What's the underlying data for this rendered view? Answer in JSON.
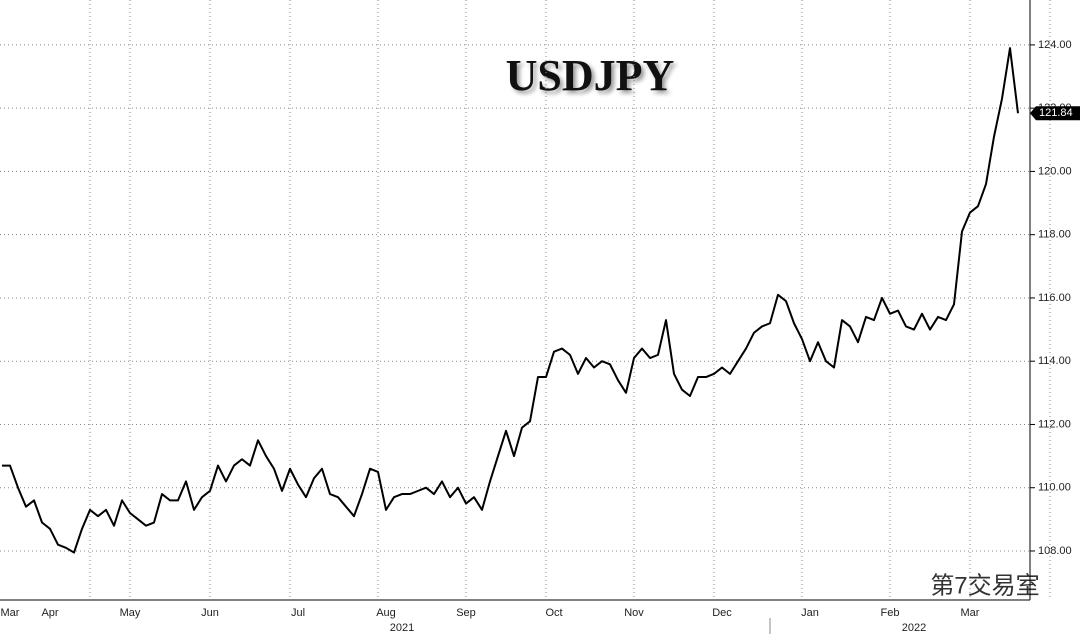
{
  "chart_data": {
    "type": "line",
    "title": "USDJPY",
    "watermark": "第7交易室",
    "categories": [
      null,
      "Mar",
      null,
      null,
      null,
      null,
      "Apr",
      null,
      null,
      null,
      null,
      null,
      null,
      null,
      null,
      null,
      "May",
      null,
      null,
      null,
      null,
      null,
      null,
      null,
      null,
      null,
      "Jun",
      null,
      null,
      null,
      null,
      null,
      null,
      null,
      null,
      null,
      null,
      "Jul",
      null,
      null,
      null,
      null,
      null,
      null,
      null,
      null,
      null,
      null,
      "Aug",
      null,
      null,
      null,
      null,
      null,
      null,
      null,
      null,
      null,
      "Sep",
      null,
      null,
      null,
      null,
      null,
      null,
      null,
      null,
      null,
      null,
      "Oct",
      null,
      null,
      null,
      null,
      null,
      null,
      null,
      null,
      null,
      "Nov",
      null,
      null,
      null,
      null,
      null,
      null,
      null,
      null,
      null,
      null,
      "Dec",
      null,
      null,
      null,
      null,
      null,
      null,
      null,
      null,
      null,
      null,
      "Jan",
      null,
      null,
      null,
      null,
      null,
      null,
      null,
      null,
      null,
      "Feb",
      null,
      null,
      null,
      null,
      null,
      null,
      null,
      null,
      null,
      "Mar",
      null,
      null,
      null,
      null,
      null,
      null
    ],
    "years": [
      "2021",
      "2022"
    ],
    "series": [
      {
        "name": "USDJPY",
        "color": "#000000",
        "values": [
          110.7,
          110.7,
          110.0,
          109.4,
          109.6,
          108.9,
          108.7,
          108.2,
          108.1,
          107.95,
          108.7,
          109.3,
          109.1,
          109.3,
          108.8,
          109.6,
          109.2,
          109.0,
          108.8,
          108.9,
          109.8,
          109.6,
          109.6,
          110.2,
          109.3,
          109.7,
          109.9,
          110.7,
          110.2,
          110.7,
          110.9,
          110.7,
          111.5,
          111.0,
          110.6,
          109.9,
          110.6,
          110.1,
          109.7,
          110.3,
          110.6,
          109.8,
          109.7,
          109.4,
          109.1,
          109.8,
          110.6,
          110.5,
          109.3,
          109.7,
          109.8,
          109.8,
          109.9,
          110.0,
          109.8,
          110.2,
          109.7,
          110.0,
          109.5,
          109.7,
          109.3,
          110.2,
          111.0,
          111.8,
          111.0,
          111.9,
          112.1,
          113.5,
          113.5,
          114.3,
          114.4,
          114.2,
          113.6,
          114.1,
          113.8,
          114.0,
          113.9,
          113.4,
          113.0,
          114.1,
          114.4,
          114.1,
          114.2,
          115.3,
          113.6,
          113.1,
          112.9,
          113.5,
          113.5,
          113.6,
          113.8,
          113.6,
          114.0,
          114.4,
          114.9,
          115.1,
          115.2,
          116.1,
          115.9,
          115.2,
          114.7,
          114.0,
          114.6,
          114.0,
          113.8,
          115.3,
          115.1,
          114.6,
          115.4,
          115.3,
          116.0,
          115.5,
          115.6,
          115.1,
          115.0,
          115.5,
          115.0,
          115.4,
          115.3,
          115.8,
          118.1,
          118.7,
          118.9,
          119.6,
          121.1,
          122.3,
          123.9,
          121.84
        ],
        "last_label": "121.84"
      }
    ],
    "ylim": [
      106.45,
      125.42
    ],
    "yticks": [
      {
        "value": 108,
        "label": "108.00"
      },
      {
        "value": 110,
        "label": "110.00"
      },
      {
        "value": 112,
        "label": "112.00"
      },
      {
        "value": 114,
        "label": "114.00"
      },
      {
        "value": 116,
        "label": "116.00"
      },
      {
        "value": 118,
        "label": "118.00"
      },
      {
        "value": 120,
        "label": "120.00"
      },
      {
        "value": 122,
        "label": "122.00"
      },
      {
        "value": 124,
        "label": "124.00"
      }
    ],
    "grid": true,
    "y_axis_side": "right"
  }
}
